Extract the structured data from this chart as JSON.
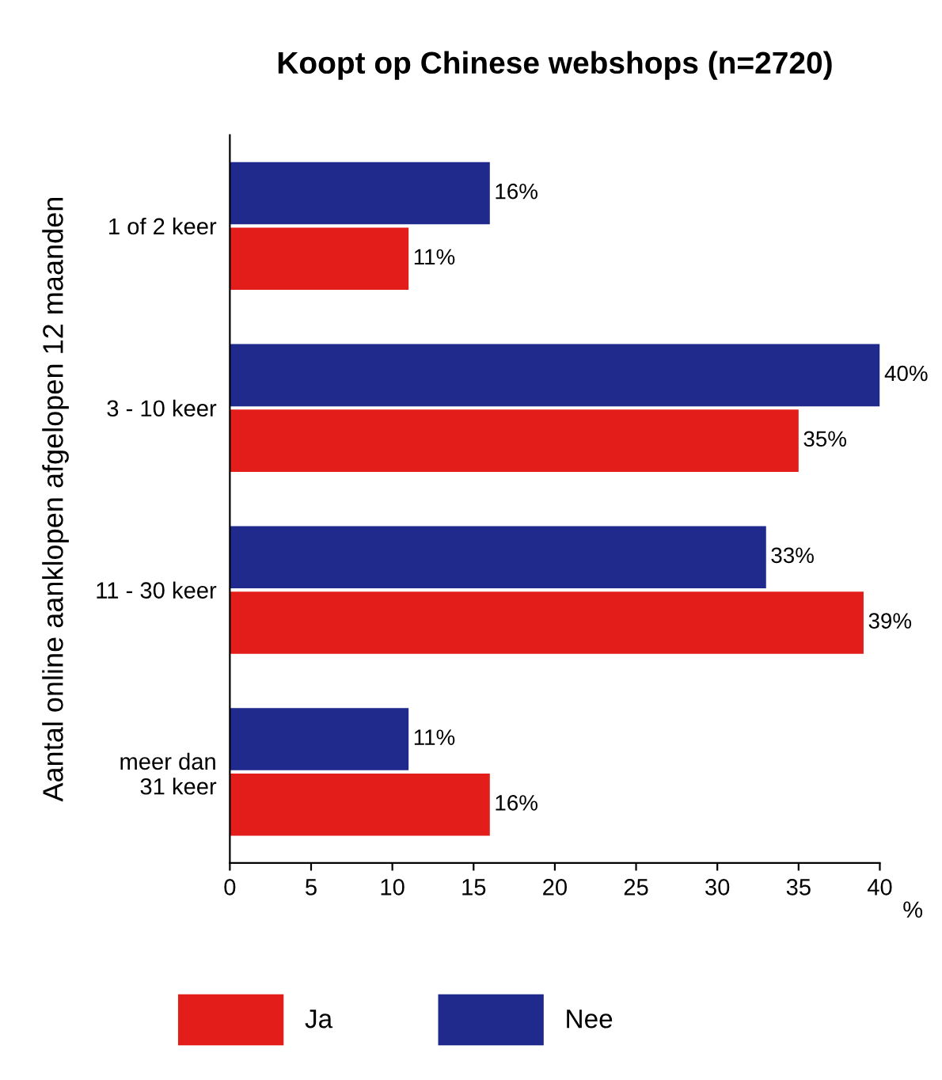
{
  "chart_data": {
    "type": "bar",
    "orientation": "horizontal",
    "title": "Koopt op Chinese webshops (n=2720)",
    "ylabel": "Aantal online aanklopen afgelopen 12 maanden",
    "xlabel": "%",
    "categories": [
      "1 of 2 keer",
      "3 - 10 keer",
      "11 - 30 keer",
      "meer dan\n31 keer"
    ],
    "series": [
      {
        "name": "Ja",
        "color": "#e31d1a",
        "values": [
          11,
          35,
          39,
          16
        ],
        "value_labels": [
          "11%",
          "35%",
          "39%",
          "16%"
        ]
      },
      {
        "name": "Nee",
        "color": "#1f2a8c",
        "values": [
          16,
          40,
          33,
          11
        ],
        "value_labels": [
          "16%",
          "40%",
          "33%",
          "11%"
        ]
      }
    ],
    "xlim": [
      0,
      40
    ],
    "xticks": [
      0,
      5,
      10,
      15,
      20,
      25,
      30,
      35,
      40
    ],
    "legend": "bottom"
  }
}
